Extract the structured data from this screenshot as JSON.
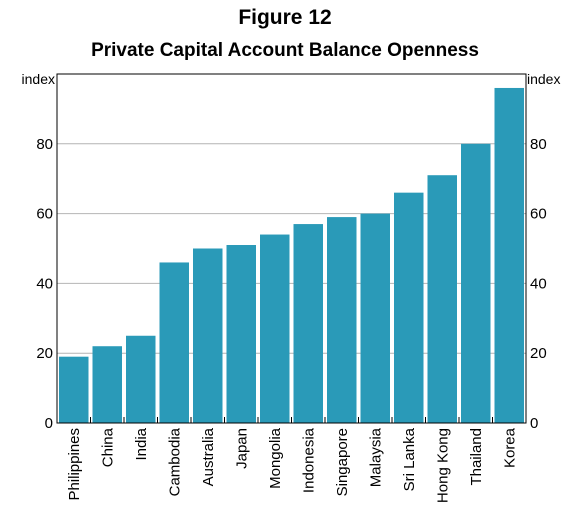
{
  "figure": {
    "number": "Figure 12",
    "title": "Private Capital Account Balance Openness"
  },
  "chart_data": {
    "type": "bar",
    "title": "Private Capital Account Balance Openness",
    "y_unit_left": "index",
    "y_unit_right": "index",
    "ylim": [
      0,
      100
    ],
    "yticks": [
      0,
      20,
      40,
      60,
      80
    ],
    "grid": true,
    "bar_color": "#2a9ab8",
    "categories": [
      "Philippines",
      "China",
      "India",
      "Cambodia",
      "Australia",
      "Japan",
      "Mongolia",
      "Indonesia",
      "Singapore",
      "Malaysia",
      "Sri Lanka",
      "Hong Kong",
      "Thailand",
      "Korea"
    ],
    "values": [
      19,
      22,
      25,
      46,
      50,
      51,
      54,
      57,
      59,
      60,
      66,
      71,
      80,
      96
    ]
  }
}
